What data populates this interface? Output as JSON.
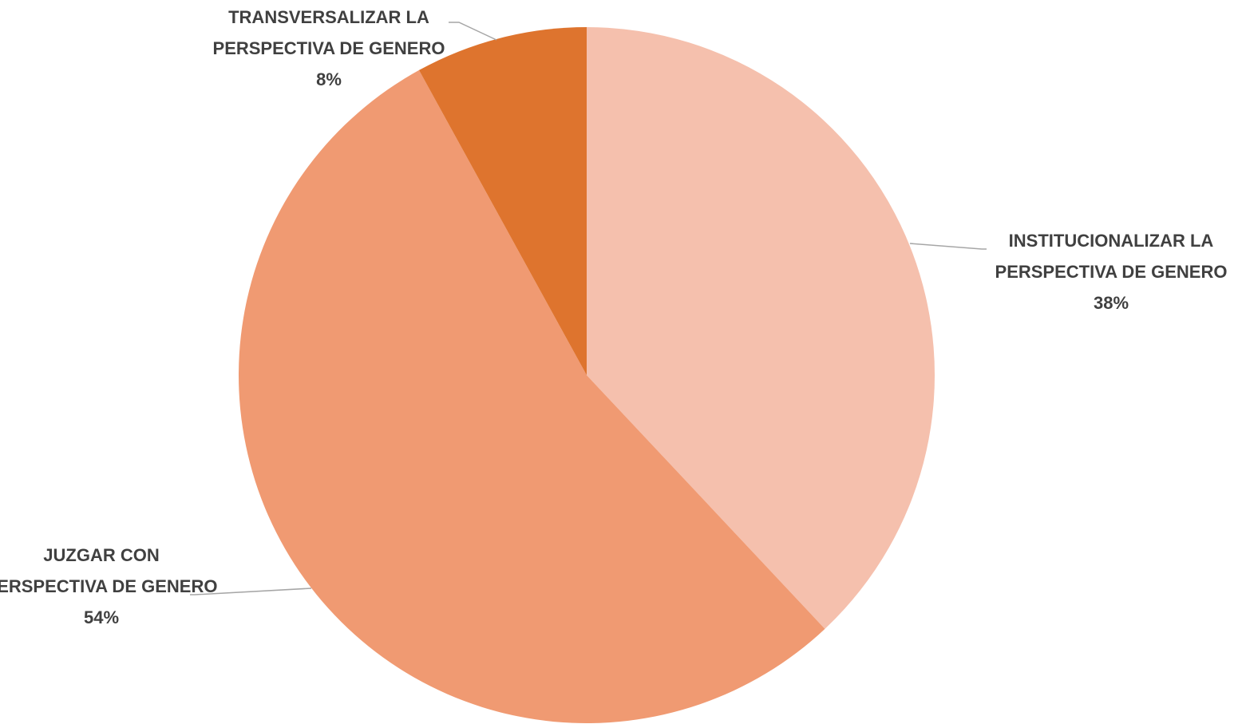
{
  "chart_data": {
    "type": "pie",
    "categories": [
      "INSTITUCIONALIZAR LA PERSPECTIVA DE GENERO",
      "JUZGAR CON PERSPECTIVA DE GENERO",
      "TRANSVERSALIZAR LA PERSPECTIVA DE GENERO"
    ],
    "values": [
      38,
      54,
      8
    ],
    "value_labels": [
      "38%",
      "54%",
      "8%"
    ],
    "colors": [
      "#f5c0ad",
      "#f09a72",
      "#de742e"
    ]
  }
}
